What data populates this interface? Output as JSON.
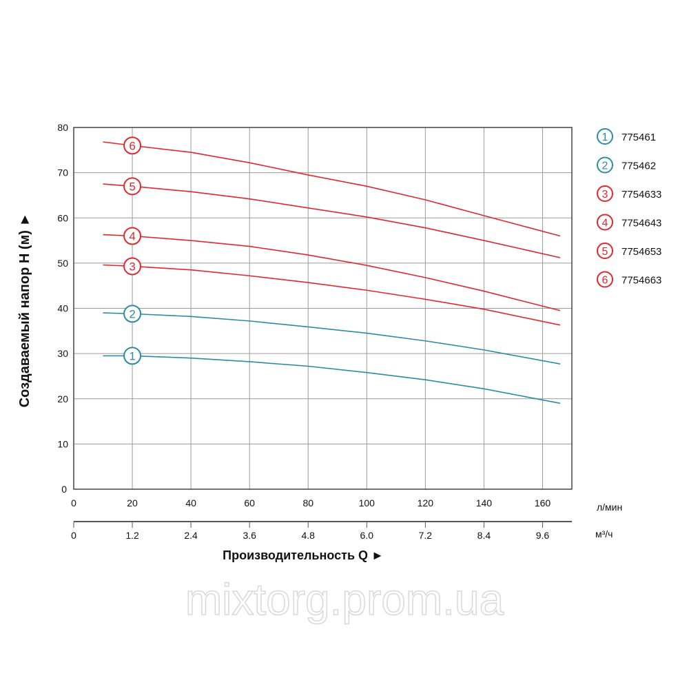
{
  "chart_data": {
    "type": "line",
    "title": "",
    "ylabel": "Создаваемый напор H (м) ►",
    "xlabel": "Производительность Q ►",
    "x_unit_primary": "л/мин",
    "x_unit_secondary": "м³/ч",
    "xlim": [
      0,
      170
    ],
    "ylim": [
      0,
      80
    ],
    "x_ticks": [
      "0",
      "20",
      "40",
      "60",
      "80",
      "100",
      "120",
      "140",
      "160"
    ],
    "x_ticks_values": [
      0,
      20,
      40,
      60,
      80,
      100,
      120,
      140,
      160
    ],
    "x2_ticks": [
      "0",
      "1.2",
      "2.4",
      "3.6",
      "4.8",
      "6.0",
      "7.2",
      "8.4",
      "9.6"
    ],
    "y_ticks": [
      "0",
      "10",
      "20",
      "30",
      "40",
      "50",
      "60",
      "70",
      "80"
    ],
    "y_ticks_values": [
      0,
      10,
      20,
      30,
      40,
      50,
      60,
      70,
      80
    ],
    "grid": true,
    "legend_placement": "right",
    "marker_x": 20,
    "x": [
      10,
      20,
      40,
      60,
      80,
      100,
      120,
      140,
      166
    ],
    "series": [
      {
        "name": "775461",
        "marker": "1",
        "color": "#2b8aa6",
        "values": [
          29.5,
          29.5,
          29.0,
          28.2,
          27.2,
          25.8,
          24.2,
          22.2,
          19.0
        ]
      },
      {
        "name": "775462",
        "marker": "2",
        "color": "#2b8aa6",
        "values": [
          39.0,
          38.8,
          38.2,
          37.2,
          35.9,
          34.5,
          32.8,
          30.8,
          27.7
        ]
      },
      {
        "name": "7754633",
        "marker": "3",
        "color": "#e3262b",
        "values": [
          49.6,
          49.3,
          48.5,
          47.2,
          45.7,
          44.0,
          42.0,
          39.8,
          36.3
        ]
      },
      {
        "name": "7754643",
        "marker": "4",
        "color": "#e3262b",
        "values": [
          56.3,
          56.0,
          55.0,
          53.7,
          51.8,
          49.5,
          46.8,
          43.8,
          39.5
        ]
      },
      {
        "name": "7754653",
        "marker": "5",
        "color": "#e3262b",
        "values": [
          67.5,
          67.0,
          65.8,
          64.2,
          62.2,
          60.2,
          57.8,
          55.0,
          51.2
        ]
      },
      {
        "name": "7754663",
        "marker": "6",
        "color": "#e3262b",
        "values": [
          76.8,
          76.0,
          74.5,
          72.2,
          69.5,
          67.0,
          64.0,
          60.5,
          56.0
        ]
      }
    ]
  },
  "watermark": "mixtorg.prom.ua"
}
